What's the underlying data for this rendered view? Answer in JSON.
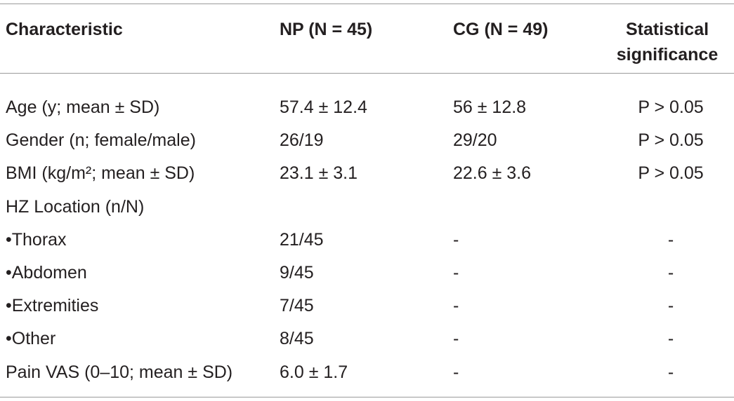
{
  "table": {
    "header": [
      "Characteristic",
      "NP (N = 45)",
      "CG (N = 49)",
      "Statistical significance"
    ],
    "rows": [
      {
        "label": "Age (y; mean ± SD)",
        "np": "57.4 ± 12.4",
        "cg": "56 ± 12.8",
        "sig": "P > 0.05"
      },
      {
        "label": "Gender (n; female/male)",
        "np": "26/19",
        "cg": "29/20",
        "sig": "P > 0.05"
      },
      {
        "label": "BMI (kg/m²; mean ± SD)",
        "np": "23.1 ± 3.1",
        "cg": "22.6 ± 3.6",
        "sig": "P > 0.05"
      },
      {
        "label": "HZ Location (n/N)"
      },
      {
        "label": "•Thorax",
        "np": "21/45",
        "cg": "-",
        "sig": "-"
      },
      {
        "label": "•Abdomen",
        "np": "9/45",
        "cg": "-",
        "sig": "-"
      },
      {
        "label": "•Extremities",
        "np": "7/45",
        "cg": "-",
        "sig": "-"
      },
      {
        "label": "•Other",
        "np": "8/45",
        "cg": "-",
        "sig": "-"
      },
      {
        "label": "Pain VAS (0–10; mean ± SD)",
        "np": "6.0 ± 1.7",
        "cg": "-",
        "sig": "-"
      }
    ]
  }
}
